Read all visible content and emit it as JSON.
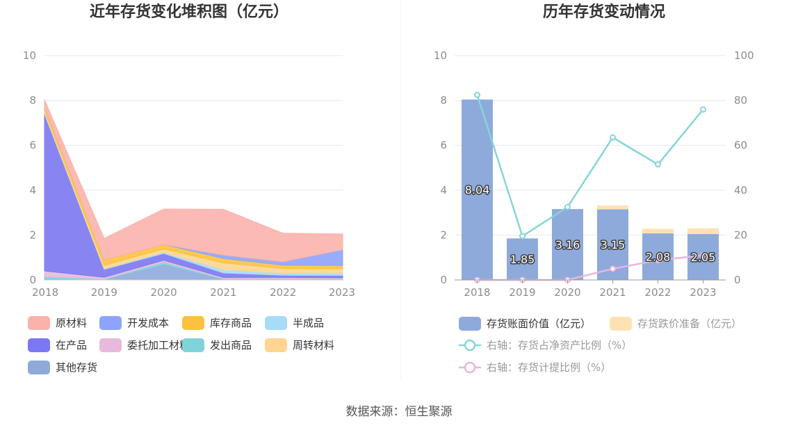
{
  "source_text": "数据来源：恒生聚源",
  "chart_data": [
    {
      "type": "area",
      "stacked": true,
      "title": "近年存货变化堆积图（亿元）",
      "categories": [
        "2018",
        "2019",
        "2020",
        "2021",
        "2022",
        "2023"
      ],
      "ylim": [
        0,
        10
      ],
      "yticks": [
        "0",
        "2",
        "4",
        "6",
        "8",
        "10"
      ],
      "grid": true,
      "legend_position": "bottom",
      "series": [
        {
          "name": "其他存货",
          "color": "#8eaadb",
          "values": [
            0.05,
            0.02,
            0.7,
            0.03,
            0.03,
            0.03
          ]
        },
        {
          "name": "发出商品",
          "color": "#80d4d9",
          "values": [
            0.1,
            0.02,
            0.1,
            0.03,
            0.03,
            0.03
          ]
        },
        {
          "name": "委托加工材料",
          "color": "#e7b9dc",
          "values": [
            0.25,
            0.08,
            0.08,
            0.05,
            0.05,
            0.04
          ]
        },
        {
          "name": "在产品",
          "color": "#7b78f2",
          "values": [
            7.0,
            0.35,
            0.3,
            0.2,
            0.1,
            0.1
          ]
        },
        {
          "name": "半成品",
          "color": "#a6dcf7",
          "values": [
            0.05,
            0.03,
            0.05,
            0.15,
            0.1,
            0.1
          ]
        },
        {
          "name": "周转材料",
          "color": "#ffd591",
          "values": [
            0.1,
            0.15,
            0.15,
            0.3,
            0.2,
            0.2
          ]
        },
        {
          "name": "库存商品",
          "color": "#fcc23d",
          "values": [
            0.15,
            0.25,
            0.2,
            0.2,
            0.15,
            0.15
          ]
        },
        {
          "name": "开发成本",
          "color": "#8ea3fb",
          "values": [
            0.0,
            0.0,
            0.0,
            0.15,
            0.15,
            0.7
          ]
        },
        {
          "name": "原材料",
          "color": "#fbb2ab",
          "values": [
            0.34,
            0.95,
            1.58,
            2.04,
            1.27,
            0.7
          ]
        }
      ]
    },
    {
      "type": "bar",
      "stacked": true,
      "title": "历年存货变动情况",
      "categories": [
        "2018",
        "2019",
        "2020",
        "2021",
        "2022",
        "2023"
      ],
      "ylim": [
        0,
        10
      ],
      "y2lim": [
        0,
        100
      ],
      "yticks": [
        "0",
        "2",
        "4",
        "6",
        "8",
        "10"
      ],
      "y2ticks": [
        "0",
        "20",
        "40",
        "60",
        "80",
        "100"
      ],
      "grid": true,
      "legend_position": "bottom",
      "series": [
        {
          "name": "存货账面价值（亿元）",
          "type": "bar",
          "color": "#8eaadb",
          "values": [
            8.04,
            1.85,
            3.16,
            3.15,
            2.08,
            2.05
          ],
          "labels": [
            "8.04",
            "1.85",
            "3.16",
            "3.15",
            "2.08",
            "2.05"
          ]
        },
        {
          "name": "存货跌价准备（亿元）",
          "type": "bar",
          "color": "#ffe1b3",
          "values": [
            0.0,
            0.0,
            0.0,
            0.17,
            0.2,
            0.25
          ]
        },
        {
          "name": "右轴：存货占净资产比例（%）",
          "type": "line",
          "axis": "right",
          "color": "#86d4d8",
          "values": [
            82.5,
            19.5,
            32.5,
            63.5,
            51.5,
            76.0
          ]
        },
        {
          "name": "右轴：存货计提比例（%）",
          "type": "line",
          "axis": "right",
          "color": "#e8b6dc",
          "values": [
            0.0,
            0.0,
            0.0,
            5.0,
            8.8,
            11.0
          ]
        }
      ]
    }
  ]
}
